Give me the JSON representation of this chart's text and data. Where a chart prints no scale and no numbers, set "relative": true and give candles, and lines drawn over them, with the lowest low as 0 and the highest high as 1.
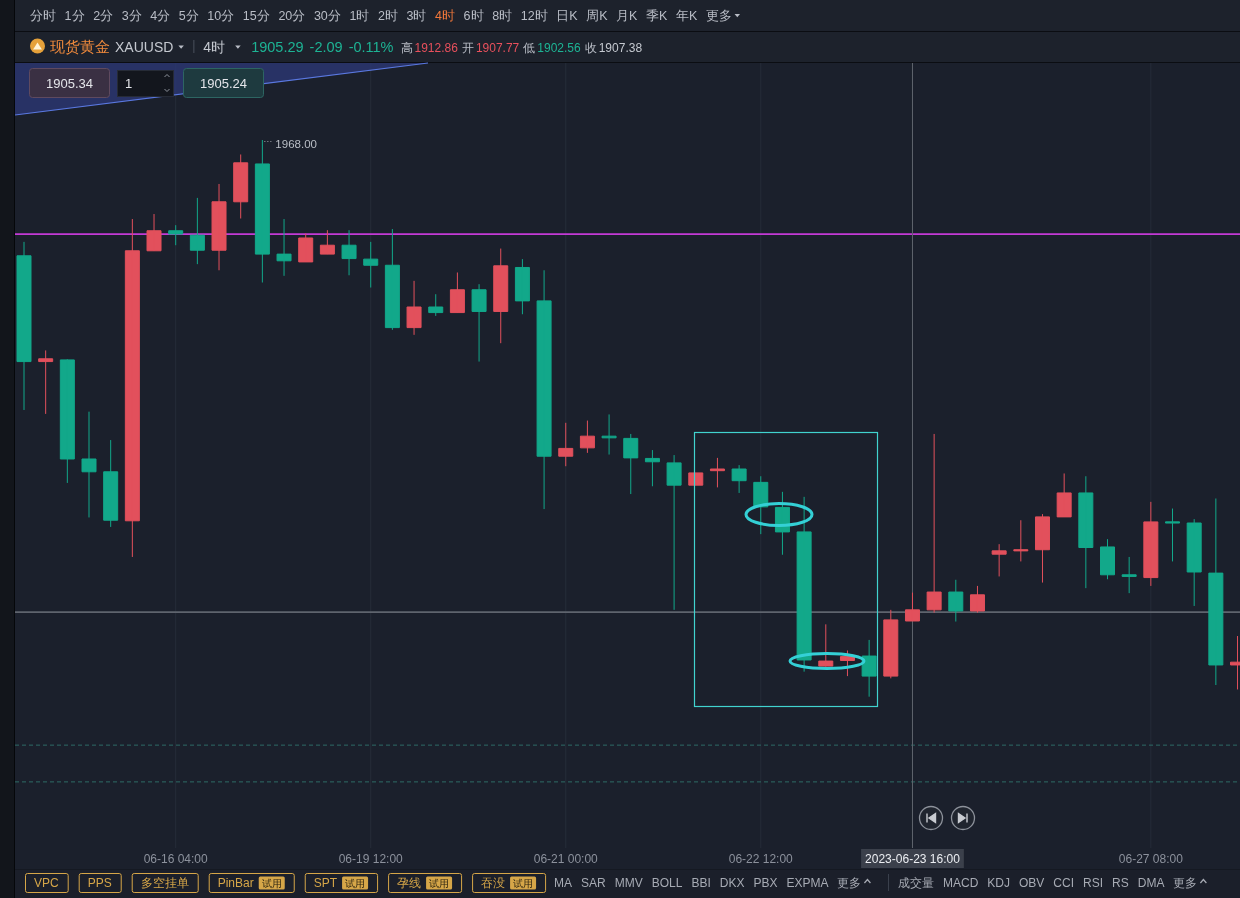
{
  "chart_data": {
    "type": "candlestick",
    "title": "现货黄金",
    "subtitle": "XAUUSD",
    "relative": true,
    "grid": "x",
    "categories": [
      null,
      null,
      null,
      null,
      null,
      null,
      null,
      "06-16 04:00",
      null,
      null,
      null,
      null,
      null,
      null,
      null,
      null,
      "06-19 12:00",
      null,
      null,
      null,
      null,
      null,
      null,
      null,
      null,
      "06-21 00:00",
      null,
      null,
      null,
      null,
      null,
      null,
      null,
      null,
      "06-22 12:00",
      null,
      null,
      null,
      null,
      null,
      null,
      "2023-06-23 16:00",
      null,
      null,
      null,
      null,
      null,
      null,
      null,
      null,
      null,
      null,
      "06-27 08:00",
      null,
      null,
      null,
      null
    ],
    "ohlc": [
      [
        0.792,
        0.817,
        0.515,
        0.602
      ],
      [
        0.602,
        0.622,
        0.508,
        0.607
      ],
      [
        0.605,
        0.606,
        0.384,
        0.427
      ],
      [
        0.427,
        0.512,
        0.322,
        0.404
      ],
      [
        0.404,
        0.461,
        0.305,
        0.317
      ],
      [
        0.316,
        0.858,
        0.251,
        0.801
      ],
      [
        0.801,
        0.867,
        0.801,
        0.837
      ],
      [
        0.837,
        0.847,
        0.811,
        0.831
      ],
      [
        0.829,
        0.896,
        0.777,
        0.802
      ],
      [
        0.802,
        0.921,
        0.766,
        0.889
      ],
      [
        0.889,
        0.974,
        0.859,
        0.959
      ],
      [
        0.957,
        1,
        0.744,
        0.795
      ],
      [
        0.795,
        0.858,
        0.756,
        0.783
      ],
      [
        0.781,
        0.832,
        0.781,
        0.824
      ],
      [
        0.795,
        0.838,
        0.795,
        0.811
      ],
      [
        0.811,
        0.838,
        0.757,
        0.787
      ],
      [
        0.786,
        0.817,
        0.735,
        0.775
      ],
      [
        0.775,
        0.84,
        0.659,
        0.663
      ],
      [
        0.663,
        0.747,
        0.65,
        0.7
      ],
      [
        0.7,
        0.723,
        0.684,
        0.69
      ],
      [
        0.69,
        0.762,
        0.69,
        0.731
      ],
      [
        0.731,
        0.741,
        0.602,
        0.692
      ],
      [
        0.692,
        0.805,
        0.635,
        0.774
      ],
      [
        0.771,
        0.786,
        0.687,
        0.711
      ],
      [
        0.711,
        0.766,
        0.337,
        0.432
      ],
      [
        0.432,
        0.492,
        0.414,
        0.446
      ],
      [
        0.447,
        0.496,
        0.438,
        0.468
      ],
      [
        0.468,
        0.507,
        0.435,
        0.465
      ],
      [
        0.464,
        0.472,
        0.364,
        0.429
      ],
      [
        0.428,
        0.443,
        0.378,
        0.422
      ],
      [
        0.42,
        0.434,
        0.156,
        0.38
      ],
      [
        0.38,
        0.402,
        0.38,
        0.402
      ],
      [
        0.406,
        0.429,
        0.376,
        0.409
      ],
      [
        0.409,
        0.416,
        0.366,
        0.388
      ],
      [
        0.385,
        0.396,
        0.292,
        0.341
      ],
      [
        0.34,
        0.368,
        0.255,
        0.296
      ],
      [
        0.296,
        0.359,
        0.045,
        0.066
      ],
      [
        0.055,
        0.13,
        0.054,
        0.064
      ],
      [
        0.065,
        0.083,
        0.037,
        0.072
      ],
      [
        0.073,
        0.102,
        0,
        0.037
      ],
      [
        0.037,
        0.156,
        0.033,
        0.138
      ],
      [
        0.136,
        0.187,
        0.136,
        0.156
      ],
      [
        0.156,
        0.472,
        0.151,
        0.188
      ],
      [
        0.188,
        0.21,
        0.135,
        0.154
      ],
      [
        0.154,
        0.199,
        0.151,
        0.183
      ],
      [
        0.256,
        0.274,
        0.216,
        0.262
      ],
      [
        0.262,
        0.317,
        0.243,
        0.264
      ],
      [
        0.264,
        0.328,
        0.205,
        0.323
      ],
      [
        0.323,
        0.401,
        0.323,
        0.366
      ],
      [
        0.366,
        0.396,
        0.195,
        0.268
      ],
      [
        0.269,
        0.283,
        0.211,
        0.219
      ],
      [
        0.219,
        0.251,
        0.186,
        0.216
      ],
      [
        0.214,
        0.35,
        0.199,
        0.314
      ],
      [
        0.314,
        0.338,
        0.243,
        0.312
      ],
      [
        0.312,
        0.319,
        0.163,
        0.224
      ],
      [
        0.222,
        0.356,
        0.021,
        0.057
      ],
      [
        0.057,
        0.109,
        0.013,
        0.062
      ]
    ],
    "colors": [
      "#12a88a",
      "#e2505c",
      "#12a88a",
      "#12a88a",
      "#12a88a",
      "#e2505c",
      "#e2505c",
      "#12a88a",
      "#12a88a",
      "#e2505c",
      "#e2505c",
      "#12a88a",
      "#12a88a",
      "#e2505c",
      "#e2505c",
      "#12a88a",
      "#12a88a",
      "#12a88a",
      "#e2505c",
      "#12a88a",
      "#e2505c",
      "#12a88a",
      "#e2505c",
      "#12a88a",
      "#12a88a",
      "#e2505c",
      "#e2505c",
      "#12a88a",
      "#12a88a",
      "#12a88a",
      "#12a88a",
      "#e2505c",
      "#e2505c",
      "#12a88a",
      "#12a88a",
      "#12a88a",
      "#12a88a",
      "#e2505c",
      "#e2505c",
      "#12a88a",
      "#e2505c",
      "#e2505c",
      "#e2505c",
      "#12a88a",
      "#e2505c",
      "#e2505c",
      "#e2505c",
      "#e2505c",
      "#e2505c",
      "#12a88a",
      "#12a88a",
      "#12a88a",
      "#e2505c",
      "#12a88a",
      "#12a88a",
      "#12a88a",
      "#e2505c"
    ],
    "ref_lines": [
      {
        "axis": "y",
        "value": 0.831,
        "color": "#c43ad6"
      },
      {
        "axis": "y",
        "value": 0.152,
        "color": "#5f646e"
      },
      {
        "axis": "y",
        "value": -0.087,
        "color": "#2e6a66",
        "line_style": "dashed"
      },
      {
        "axis": "y",
        "value": -0.153,
        "color": "#2e6a66",
        "line_style": "dashed"
      },
      {
        "axis": "x",
        "value": "2023-06-23 16:00",
        "color": "#5f646e"
      }
    ],
    "annotations": [
      "1968.00",
      "分时",
      "1分",
      "2分",
      "3分",
      "4分",
      "5分",
      "10分",
      "15分",
      "20分",
      "30分",
      "1时",
      "2时",
      "3时",
      "4时",
      "6时",
      "8时",
      "12时",
      "日K",
      "周K",
      "月K",
      "季K",
      "年K",
      "更多",
      "4时",
      "1905.29",
      "-2.09",
      "-0.11%",
      "高",
      "1912.86",
      "开",
      "1907.77",
      "低",
      "1902.56",
      "收",
      "1907.38",
      "1905.34",
      "1",
      "1905.24",
      "VPC",
      "PPS",
      "多空挂单",
      "PinBar",
      "试用",
      "SPT",
      "试用",
      "孕线",
      "试用",
      "吞没",
      "试用",
      "MA",
      "SAR",
      "MMV",
      "BOLL",
      "BBI",
      "DKX",
      "PBX",
      "EXPMA",
      "更多",
      "成交量",
      "MACD",
      "KDJ",
      "OBV",
      "CCI",
      "RSI",
      "RS",
      "DMA",
      "更多"
    ]
  }
}
